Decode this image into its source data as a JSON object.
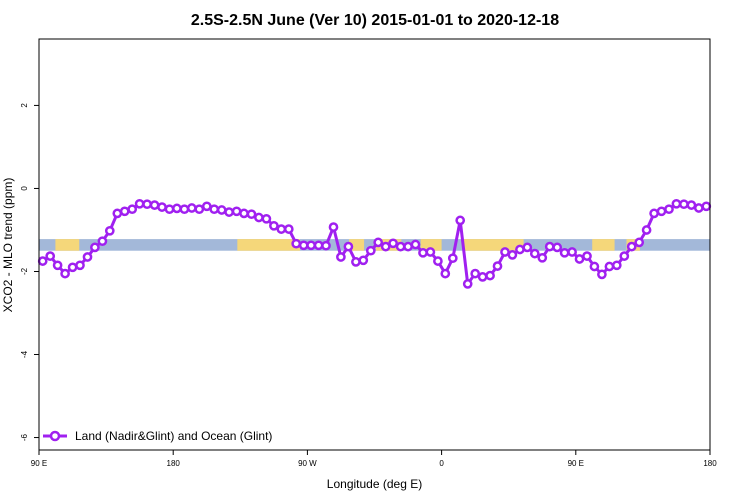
{
  "colors": {
    "series": "#a020f0",
    "ocean_band": "#a3b8d9",
    "land_band": "#f5d77a",
    "axis": "#000000",
    "background": "#ffffff"
  },
  "chart_data": {
    "type": "line",
    "title": "2.5S-2.5N June (Ver 10)   2015-01-01 to 2020-12-18",
    "xlabel": "Longitude (deg E)",
    "ylabel": "XCO2 - MLO trend (ppm)",
    "x_tick_labels": [
      "90 E",
      "180",
      "90 W",
      "0",
      "90 E",
      "180"
    ],
    "y_tick_labels": [
      "-6",
      "-4",
      "-2",
      "0",
      "2"
    ],
    "x_tick_values": [
      90,
      180,
      270,
      360,
      450,
      540
    ],
    "y_tick_values": [
      -6,
      -4,
      -2,
      0,
      2
    ],
    "xlim": [
      90,
      540
    ],
    "ylim": [
      -6.3,
      3.6
    ],
    "legend": {
      "position": "bottom-left",
      "label": "Land (Nadir&Glint) and Ocean (Glint)"
    },
    "surface_band": {
      "y_range": [
        -1.5,
        -1.22
      ],
      "land_segments": [
        [
          101,
          117
        ],
        [
          223,
          265
        ],
        [
          298,
          308
        ],
        [
          316,
          333
        ],
        [
          346,
          360
        ],
        [
          374,
          415
        ],
        [
          461,
          476
        ],
        [
          484,
          493
        ]
      ]
    },
    "series": [
      {
        "name": "Land (Nadir&Glint) and Ocean (Glint)",
        "x": [
          92.5,
          97.5,
          102.5,
          107.5,
          112.5,
          117.5,
          122.5,
          127.5,
          132.5,
          137.5,
          142.5,
          147.5,
          152.5,
          157.5,
          162.5,
          167.5,
          172.5,
          177.5,
          182.5,
          187.5,
          192.5,
          197.5,
          202.5,
          207.5,
          212.5,
          217.5,
          222.5,
          227.5,
          232.5,
          237.5,
          242.5,
          247.5,
          252.5,
          257.5,
          262.5,
          267.5,
          272.5,
          277.5,
          282.5,
          287.5,
          292.5,
          297.5,
          302.5,
          307.5,
          312.5,
          317.5,
          322.5,
          327.5,
          332.5,
          337.5,
          342.5,
          347.5,
          352.5,
          357.5,
          362.5,
          367.5,
          372.5,
          377.5,
          382.5,
          387.5,
          392.5,
          397.5,
          402.5,
          407.5,
          412.5,
          417.5,
          422.5,
          427.5,
          432.5,
          437.5,
          442.5,
          447.5,
          452.5,
          457.5,
          462.5,
          467.5,
          472.5,
          477.5,
          482.5,
          487.5,
          492.5,
          497.5,
          502.5,
          507.5,
          512.5,
          517.5,
          522.5,
          527.5,
          532.5,
          537.5
        ],
        "y": [
          -1.75,
          -1.63,
          -1.85,
          -2.05,
          -1.9,
          -1.85,
          -1.65,
          -1.42,
          -1.27,
          -1.02,
          -0.6,
          -0.55,
          -0.5,
          -0.37,
          -0.38,
          -0.4,
          -0.45,
          -0.5,
          -0.48,
          -0.5,
          -0.47,
          -0.5,
          -0.43,
          -0.5,
          -0.52,
          -0.57,
          -0.55,
          -0.6,
          -0.62,
          -0.7,
          -0.73,
          -0.9,
          -0.98,
          -0.98,
          -1.33,
          -1.37,
          -1.37,
          -1.37,
          -1.38,
          -0.93,
          -1.65,
          -1.4,
          -1.77,
          -1.73,
          -1.5,
          -1.3,
          -1.4,
          -1.32,
          -1.4,
          -1.4,
          -1.35,
          -1.55,
          -1.53,
          -1.75,
          -2.05,
          -1.68,
          -0.77,
          -2.3,
          -2.05,
          -2.13,
          -2.1,
          -1.87,
          -1.53,
          -1.6,
          -1.47,
          -1.42,
          -1.57,
          -1.67,
          -1.4,
          -1.42,
          -1.55,
          -1.53,
          -1.7,
          -1.63,
          -1.88,
          -2.07,
          -1.88,
          -1.85,
          -1.63,
          -1.4,
          -1.3,
          -1.0,
          -0.6,
          -0.55,
          -0.5,
          -0.37,
          -0.38,
          -0.4,
          -0.47,
          -0.43
        ]
      }
    ]
  }
}
